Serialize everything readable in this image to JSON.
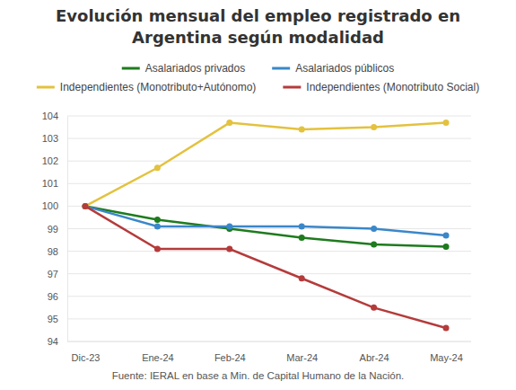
{
  "chart_data": {
    "type": "line",
    "title": "Evolución mensual del empleo registrado en Argentina según modalidad",
    "source": "Fuente: IERAL en base a Min. de Capital Humano de la Nación.",
    "categories": [
      "Dic-23",
      "Ene-24",
      "Feb-24",
      "Mar-24",
      "Abr-24",
      "May-24"
    ],
    "series": [
      {
        "name": "Asalariados privados",
        "color": "#1e7b1e",
        "marker": "circle",
        "values": [
          100,
          99.4,
          99.0,
          98.6,
          98.3,
          98.2
        ]
      },
      {
        "name": "Asalariados públicos",
        "color": "#3a87c9",
        "marker": "circle",
        "values": [
          100,
          99.1,
          99.1,
          99.1,
          99.0,
          98.7
        ]
      },
      {
        "name": "Independientes (Monotributo+Autónomo)",
        "color": "#e3c23e",
        "marker": "circle",
        "values": [
          100,
          101.7,
          103.7,
          103.4,
          103.5,
          103.7
        ]
      },
      {
        "name": "Independientes (Monotributo Social)",
        "color": "#b53b3b",
        "marker": "circle",
        "values": [
          100,
          98.1,
          98.1,
          96.8,
          95.5,
          94.6
        ]
      }
    ],
    "ylim": [
      94,
      104
    ],
    "yticks": [
      94,
      95,
      96,
      97,
      98,
      99,
      100,
      101,
      102,
      103,
      104
    ],
    "grid": true,
    "legend": "top"
  }
}
